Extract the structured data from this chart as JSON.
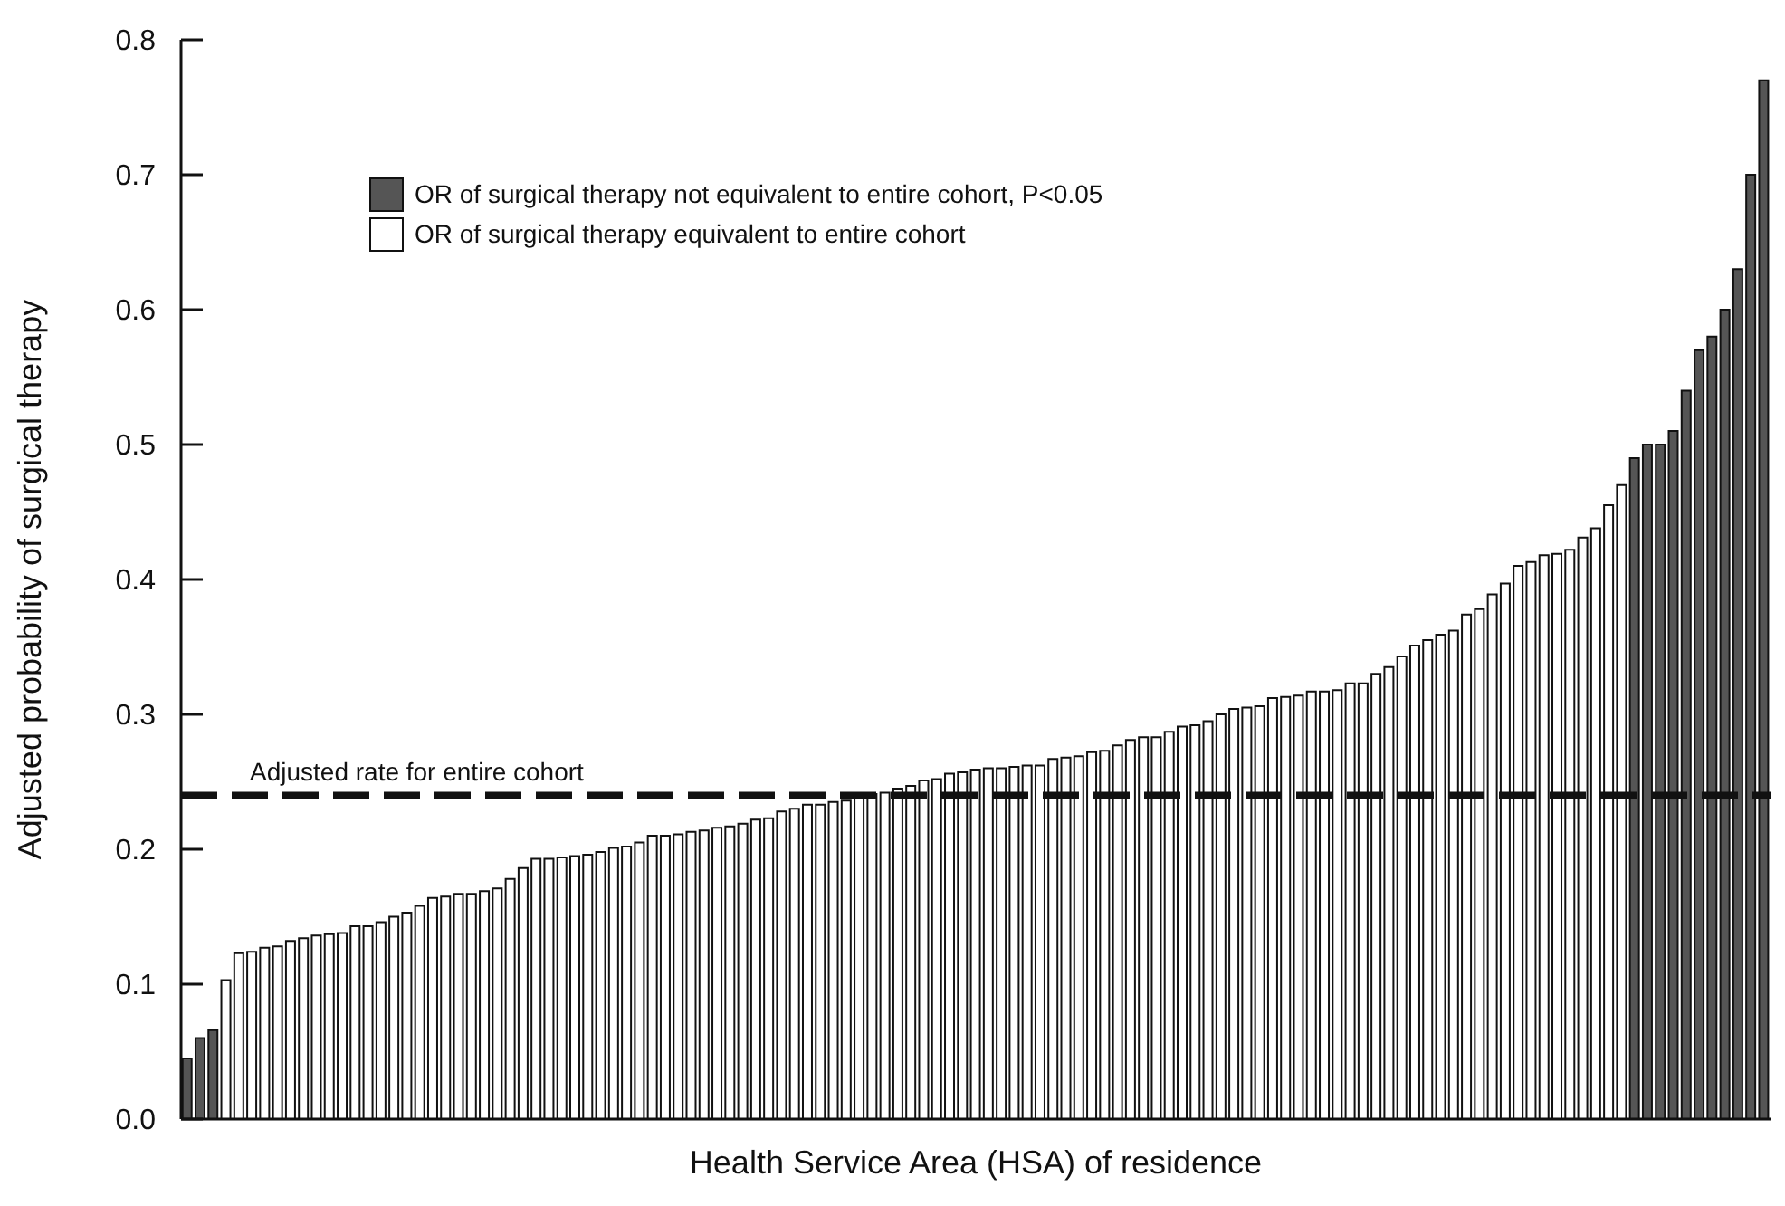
{
  "chart_data": {
    "type": "bar",
    "xlabel": "Health Service Area (HSA) of residence",
    "ylabel": "Adjusted probability of surgical therapy",
    "categories": [
      null,
      null,
      null,
      null,
      null,
      null,
      null,
      null,
      null,
      null,
      null,
      null,
      null,
      null,
      null,
      null,
      null,
      null,
      null,
      null,
      null,
      null,
      null,
      null,
      null,
      null,
      null,
      null,
      null,
      null,
      null,
      null,
      null,
      null,
      null,
      null,
      null,
      null,
      null,
      null,
      null,
      null,
      null,
      null,
      null,
      null,
      null,
      null,
      null,
      null,
      null,
      null,
      null,
      null,
      null,
      null,
      null,
      null,
      null,
      null,
      null,
      null,
      null,
      null,
      null,
      null,
      null,
      null,
      null,
      null,
      null,
      null,
      null,
      null,
      null,
      null,
      null,
      null,
      null,
      null,
      null,
      null,
      null,
      null,
      null,
      null,
      null,
      null,
      null,
      null,
      null,
      null,
      null,
      null,
      null,
      null,
      null,
      null,
      null,
      null,
      null,
      null,
      null,
      null,
      null,
      null,
      null,
      null,
      null,
      null,
      null,
      null,
      null,
      null,
      null,
      null,
      null,
      null,
      null,
      null,
      null,
      null,
      null
    ],
    "series": [
      {
        "name": "OR of surgical therapy not equivalent to entire cohort, P<0.05",
        "color": "#555555",
        "values": [
          0.045,
          0.06,
          0.066,
          null,
          null,
          null,
          null,
          null,
          null,
          null,
          null,
          null,
          null,
          null,
          null,
          null,
          null,
          null,
          null,
          null,
          null,
          null,
          null,
          null,
          null,
          null,
          null,
          null,
          null,
          null,
          null,
          null,
          null,
          null,
          null,
          null,
          null,
          null,
          null,
          null,
          null,
          null,
          null,
          null,
          null,
          null,
          null,
          null,
          null,
          null,
          null,
          null,
          null,
          null,
          null,
          null,
          null,
          null,
          null,
          null,
          null,
          null,
          null,
          null,
          null,
          null,
          null,
          null,
          null,
          null,
          null,
          null,
          null,
          null,
          null,
          null,
          null,
          null,
          null,
          null,
          null,
          null,
          null,
          null,
          null,
          null,
          null,
          null,
          null,
          null,
          null,
          null,
          null,
          null,
          null,
          null,
          null,
          null,
          null,
          null,
          null,
          null,
          null,
          null,
          null,
          null,
          null,
          null,
          null,
          null,
          null,
          null,
          0.49,
          0.5,
          0.5,
          0.51,
          0.54,
          0.57,
          0.58,
          0.6,
          0.63,
          0.7,
          0.77
        ]
      },
      {
        "name": "OR of surgical therapy equivalent to entire cohort",
        "color": "#ffffff",
        "values": [
          null,
          null,
          null,
          0.103,
          0.123,
          0.124,
          0.127,
          0.128,
          0.132,
          0.134,
          0.136,
          0.137,
          0.138,
          0.143,
          0.143,
          0.146,
          0.15,
          0.153,
          0.158,
          0.164,
          0.165,
          0.167,
          0.167,
          0.169,
          0.171,
          0.178,
          0.186,
          0.193,
          0.193,
          0.194,
          0.195,
          0.196,
          0.198,
          0.201,
          0.202,
          0.205,
          0.21,
          0.21,
          0.211,
          0.213,
          0.214,
          0.216,
          0.217,
          0.219,
          0.222,
          0.223,
          0.228,
          0.23,
          0.233,
          0.233,
          0.235,
          0.236,
          0.238,
          0.241,
          0.242,
          0.245,
          0.247,
          0.251,
          0.252,
          0.256,
          0.257,
          0.259,
          0.26,
          0.26,
          0.261,
          0.262,
          0.262,
          0.267,
          0.268,
          0.269,
          0.272,
          0.273,
          0.277,
          0.281,
          0.283,
          0.283,
          0.287,
          0.291,
          0.292,
          0.295,
          0.3,
          0.304,
          0.305,
          0.306,
          0.312,
          0.313,
          0.314,
          0.317,
          0.317,
          0.318,
          0.323,
          0.323,
          0.33,
          0.335,
          0.343,
          0.351,
          0.355,
          0.359,
          0.362,
          0.374,
          0.378,
          0.389,
          0.397,
          0.41,
          0.413,
          0.418,
          0.419,
          0.422,
          0.431,
          0.438,
          0.455,
          0.47,
          null,
          null,
          null,
          null,
          null,
          null,
          null,
          null,
          null,
          null,
          null
        ]
      }
    ],
    "ylim": [
      0,
      0.8
    ],
    "yticks": [
      {
        "value": 0,
        "label": "0.0"
      },
      0.1,
      0.2,
      0.3,
      0.4,
      0.5,
      0.6,
      0.7,
      0.8
    ],
    "ref_lines": [
      {
        "axis": "y",
        "value": 0.24,
        "label": "Adjusted rate for entire cohort",
        "color": "#111111",
        "line_style": "dashed"
      }
    ],
    "legend": "top left",
    "grid": false
  }
}
